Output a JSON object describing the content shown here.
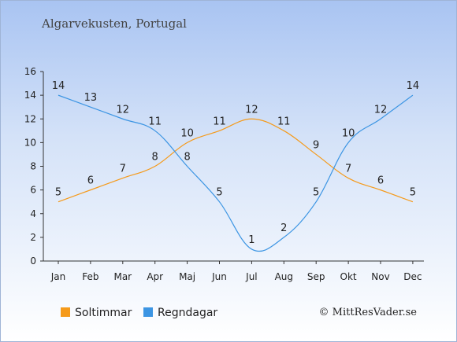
{
  "chart_data": {
    "type": "line",
    "title": "Algarvekusten, Portugal",
    "categories": [
      "Jan",
      "Feb",
      "Mar",
      "Apr",
      "Maj",
      "Jun",
      "Jul",
      "Aug",
      "Sep",
      "Okt",
      "Nov",
      "Dec"
    ],
    "y_ticks": [
      "0",
      "2",
      "4",
      "6",
      "8",
      "10",
      "12",
      "14",
      "16"
    ],
    "ylim": [
      0,
      16
    ],
    "grid": false,
    "legend_position": "bottom-left",
    "series": [
      {
        "name": "Soltimmar",
        "color": "#f59a1a",
        "values": [
          5,
          6,
          7,
          8,
          10,
          11,
          12,
          11,
          9,
          7,
          6,
          5
        ]
      },
      {
        "name": "Regndagar",
        "color": "#3c95e3",
        "values": [
          14,
          13,
          12,
          11,
          8,
          5,
          1,
          2,
          5,
          10,
          12,
          14
        ]
      }
    ]
  },
  "credit": "© MittResVader.se"
}
